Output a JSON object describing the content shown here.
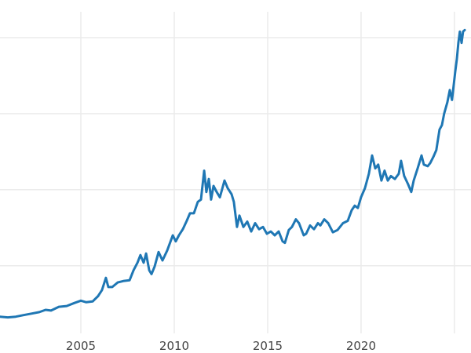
{
  "chart_data": {
    "type": "line",
    "title": "",
    "xlabel": "",
    "ylabel": "",
    "xlim": [
      2000.67,
      2025.55
    ],
    "ylim": [
      0.11,
      4.34
    ],
    "x_gridlines": [
      2005,
      2010,
      2015,
      2020,
      2025
    ],
    "x_tick_labels": [
      "2005",
      "2010",
      "2015",
      "2020"
    ],
    "y_gridlines": [
      1,
      2,
      3,
      4
    ],
    "y_tick_labels": [],
    "grid": true,
    "line_color": "#1f77b4",
    "grid_color": "#ebebeb",
    "series": [
      {
        "x": [
          2000.67,
          2001.09,
          2001.51,
          2001.93,
          2002.35,
          2002.77,
          2003.11,
          2003.4,
          2003.82,
          2004.24,
          2004.66,
          2005.0,
          2005.29,
          2005.63,
          2005.92,
          2006.13,
          2006.34,
          2006.47,
          2006.68,
          2006.97,
          2007.31,
          2007.61,
          2007.82,
          2008.03,
          2008.19,
          2008.36,
          2008.49,
          2008.66,
          2008.78,
          2008.95,
          2009.16,
          2009.37,
          2009.62,
          2009.92,
          2010.08,
          2010.25,
          2010.46,
          2010.67,
          2010.84,
          2011.05,
          2011.26,
          2011.43,
          2011.6,
          2011.72,
          2011.85,
          2011.97,
          2012.1,
          2012.27,
          2012.44,
          2012.69,
          2012.86,
          2013.07,
          2013.19,
          2013.36,
          2013.49,
          2013.7,
          2013.91,
          2014.12,
          2014.33,
          2014.54,
          2014.75,
          2014.96,
          2015.17,
          2015.38,
          2015.59,
          2015.8,
          2015.92,
          2016.13,
          2016.3,
          2016.51,
          2016.68,
          2016.93,
          2017.06,
          2017.27,
          2017.48,
          2017.69,
          2017.82,
          2018.03,
          2018.24,
          2018.49,
          2018.74,
          2019.03,
          2019.29,
          2019.5,
          2019.66,
          2019.83,
          2020.0,
          2020.21,
          2020.42,
          2020.59,
          2020.76,
          2020.92,
          2021.09,
          2021.26,
          2021.43,
          2021.6,
          2021.81,
          2022.02,
          2022.14,
          2022.31,
          2022.52,
          2022.69,
          2022.82,
          2023.03,
          2023.24,
          2023.36,
          2023.57,
          2023.7,
          2023.87,
          2024.03,
          2024.2,
          2024.33,
          2024.45,
          2024.62,
          2024.75,
          2024.87,
          2025.04,
          2025.13,
          2025.21,
          2025.29,
          2025.38,
          2025.46,
          2025.55
        ],
        "y": [
          0.33,
          0.32,
          0.33,
          0.35,
          0.37,
          0.39,
          0.42,
          0.41,
          0.46,
          0.47,
          0.51,
          0.54,
          0.52,
          0.53,
          0.6,
          0.68,
          0.84,
          0.72,
          0.72,
          0.78,
          0.8,
          0.81,
          0.94,
          1.04,
          1.14,
          1.04,
          1.16,
          0.94,
          0.89,
          0.99,
          1.18,
          1.07,
          1.2,
          1.4,
          1.32,
          1.4,
          1.48,
          1.59,
          1.69,
          1.69,
          1.84,
          1.87,
          2.25,
          1.97,
          2.14,
          1.87,
          2.05,
          1.97,
          1.9,
          2.12,
          2.02,
          1.94,
          1.84,
          1.51,
          1.66,
          1.51,
          1.58,
          1.45,
          1.56,
          1.48,
          1.51,
          1.42,
          1.45,
          1.4,
          1.45,
          1.32,
          1.3,
          1.47,
          1.51,
          1.61,
          1.56,
          1.4,
          1.42,
          1.53,
          1.48,
          1.56,
          1.53,
          1.61,
          1.56,
          1.44,
          1.47,
          1.56,
          1.59,
          1.73,
          1.79,
          1.76,
          1.9,
          2.02,
          2.21,
          2.45,
          2.28,
          2.33,
          2.12,
          2.25,
          2.12,
          2.18,
          2.14,
          2.21,
          2.38,
          2.18,
          2.07,
          1.97,
          2.12,
          2.28,
          2.45,
          2.33,
          2.31,
          2.35,
          2.43,
          2.52,
          2.79,
          2.85,
          3.0,
          3.15,
          3.31,
          3.18,
          3.55,
          3.72,
          3.93,
          4.08,
          3.93,
          4.08,
          4.1
        ]
      }
    ]
  }
}
